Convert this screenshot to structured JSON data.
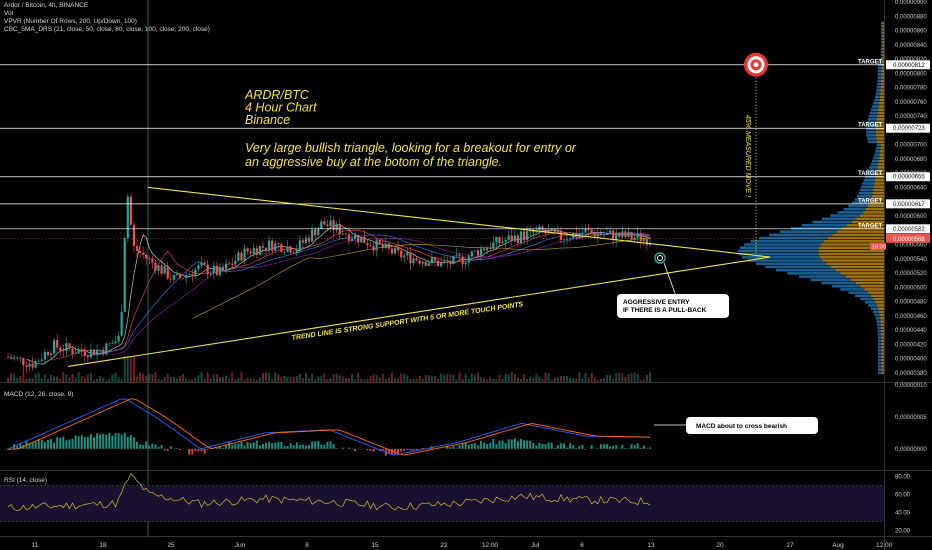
{
  "header": {
    "symbol_line": "Ardor / Bitcoin, 4h, BINANCE",
    "vol_line": "Vol",
    "vpvr_line": "VPVR (Number Of Rows, 200, Up/Down, 100)",
    "sma_line": "CBC_5MA_DRS (21, close, 50, close, 80, close, 100, close, 200, close)"
  },
  "annotations": {
    "title_lines": [
      "ARDR/BTC",
      "4 Hour Chart",
      "Binance"
    ],
    "thesis_lines": [
      "Very large bullish triangle, looking for a breakout for entry or",
      "an aggressive buy at the botom of the triangle."
    ],
    "trendline_note": "TREND LINE IS STRONG SUPPORT WITH 5 OR MORE TOUCH POINTS",
    "entry_box": [
      "AGGRESSIVE ENTRY",
      "IF THERE IS A PULL-BACK"
    ],
    "measured_move": "45% MEASURED MOVE !",
    "macd_box": "MACD about to cross bearish"
  },
  "colors": {
    "background": "#000000",
    "up_candle": "#26a69a",
    "down_candle": "#ef5350",
    "triangle": "#f5e142",
    "annotation_text": "#f5e142",
    "target_line": "#ffffff",
    "vpvr_up": "#1f6fa8",
    "vpvr_down": "#b8860b",
    "macd_line": "#2962ff",
    "signal_line": "#ff6d00",
    "rsi_line": "#d4b830",
    "rsi_band": "#1a1030",
    "target_marker": "#e53935"
  },
  "macd_pane": {
    "label": "MACD (12, 26, close, 9)"
  },
  "rsi_pane": {
    "label": "RSI (14, close)"
  },
  "chart_data": {
    "type": "candlestick",
    "title": "Ardor / Bitcoin, 4h, BINANCE",
    "price_axis": {
      "ticks": [
        "0.00000900",
        "0.00000880",
        "0.00000860",
        "0.00000840",
        "0.00000820",
        "0.00000800",
        "0.00000780",
        "0.00000760",
        "0.00000740",
        "0.00000720",
        "0.00000700",
        "0.00000680",
        "0.00000660",
        "0.00000640",
        "0.00000620",
        "0.00000600",
        "0.00000580",
        "0.00000560",
        "0.00000540",
        "0.00000520",
        "0.00000500",
        "0.00000480",
        "0.00000460",
        "0.00000440",
        "0.00000420",
        "0.00000400",
        "0.00000380"
      ],
      "ylim": [
        3.7e-06,
        9e-06
      ]
    },
    "targets": [
      {
        "label": "TARGET",
        "value": "0.00000812",
        "price": 8.12e-06
      },
      {
        "label": "TARGET",
        "value": "0.00000723",
        "price": 7.23e-06
      },
      {
        "label": "TARGET",
        "value": "0.00000655",
        "price": 6.55e-06
      },
      {
        "label": "TARGET",
        "value": "0.00000617",
        "price": 6.17e-06
      },
      {
        "label": "TARGET",
        "value": "0.00000582",
        "price": 5.82e-06
      }
    ],
    "last_price": {
      "value": "0.00000568",
      "sub": "18:00",
      "price": 5.68e-06
    },
    "x_ticks": [
      "11",
      "18",
      "25",
      "Jun",
      "8",
      "15",
      "22",
      "12:00",
      "Jul",
      "6",
      "13",
      "20",
      "27",
      "Aug",
      "12:00"
    ],
    "price_path": [
      [
        0,
        4.02e-06
      ],
      [
        0.04,
        3.93e-06
      ],
      [
        0.07,
        4.18e-06
      ],
      [
        0.1,
        4.12e-06
      ],
      [
        0.13,
        4.1e-06
      ],
      [
        0.15,
        4.14e-06
      ],
      [
        0.175,
        4.3e-06
      ],
      [
        0.185,
        6.42e-06
      ],
      [
        0.195,
        5.56e-06
      ],
      [
        0.22,
        5.38e-06
      ],
      [
        0.26,
        5.1e-06
      ],
      [
        0.3,
        5.28e-06
      ],
      [
        0.33,
        5.2e-06
      ],
      [
        0.37,
        5.5e-06
      ],
      [
        0.41,
        5.6e-06
      ],
      [
        0.45,
        5.55e-06
      ],
      [
        0.49,
        5.9e-06
      ],
      [
        0.53,
        5.75e-06
      ],
      [
        0.57,
        5.6e-06
      ],
      [
        0.61,
        5.45e-06
      ],
      [
        0.65,
        5.38e-06
      ],
      [
        0.68,
        5.32e-06
      ],
      [
        0.71,
        5.4e-06
      ],
      [
        0.74,
        5.55e-06
      ],
      [
        0.77,
        5.65e-06
      ],
      [
        0.8,
        5.72e-06
      ],
      [
        0.83,
        5.78e-06
      ],
      [
        0.86,
        5.7e-06
      ],
      [
        0.9,
        5.78e-06
      ],
      [
        0.93,
        5.74e-06
      ],
      [
        1.0,
        5.68e-06
      ]
    ],
    "triangle": {
      "upper": [
        [
          6.4e-06,
          0.0
        ],
        [
          5.48e-06,
          1.0
        ]
      ],
      "lower": [
        [
          3.9e-06,
          0.0
        ],
        [
          5.48e-06,
          1.0
        ]
      ]
    },
    "macd": {
      "ticks": [
        "0.00000010",
        "0.00000005",
        "0.00000000"
      ],
      "ylim": [
        -3e-08,
        1e-07
      ],
      "path": [
        [
          0,
          -5e-10
        ],
        [
          0.18,
          8e-08
        ],
        [
          0.23,
          5e-08
        ],
        [
          0.3,
          0.0
        ],
        [
          0.4,
          2.5e-08
        ],
        [
          0.5,
          3e-08
        ],
        [
          0.6,
          -1e-08
        ],
        [
          0.7,
          1e-08
        ],
        [
          0.8,
          4e-08
        ],
        [
          0.9,
          2e-08
        ],
        [
          1.0,
          1.8e-08
        ]
      ]
    },
    "rsi": {
      "ticks": [
        "80.00",
        "60.00",
        "40.00",
        "20.00"
      ],
      "ylim": [
        15,
        85
      ],
      "path": [
        [
          0,
          45
        ],
        [
          0.17,
          50
        ],
        [
          0.19,
          82
        ],
        [
          0.22,
          60
        ],
        [
          0.3,
          50
        ],
        [
          0.4,
          55
        ],
        [
          0.5,
          52
        ],
        [
          0.6,
          46
        ],
        [
          0.7,
          50
        ],
        [
          0.8,
          58
        ],
        [
          0.9,
          54
        ],
        [
          1.0,
          52
        ]
      ]
    }
  }
}
